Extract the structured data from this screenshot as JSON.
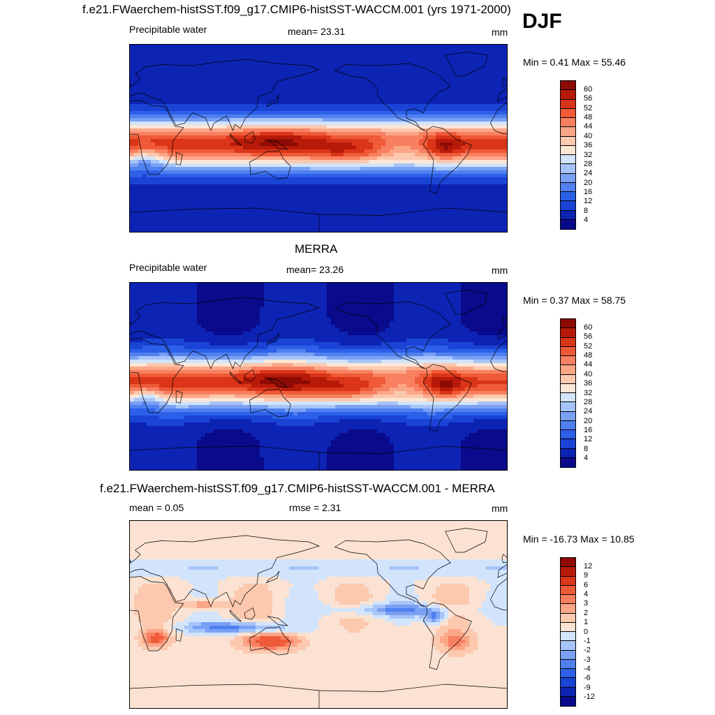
{
  "season": "DJF",
  "panels": [
    {
      "id": "model",
      "title": "f.e21.FWaerchem-histSST.f09_g17.CMIP6-histSST-WACCM.001 (yrs 1971-2000)",
      "left_label": "Precipitable water",
      "center_label": "mean=  23.31",
      "right_label": "mm",
      "minmax": "Min =   0.41 Max =  55.46"
    },
    {
      "id": "obs",
      "title": "MERRA",
      "left_label": "Precipitable water",
      "center_label": "mean=  23.26",
      "right_label": "mm",
      "minmax": "Min =   0.37 Max =  58.75"
    },
    {
      "id": "diff",
      "title": "f.e21.FWaerchem-histSST.f09_g17.CMIP6-histSST-WACCM.001 - MERRA",
      "left_label": "mean =   0.05",
      "center_label": "rmse =   2.31",
      "right_label": "mm",
      "minmax": "Min = -16.73 Max =  10.85"
    }
  ],
  "chart_data": [
    {
      "type": "heatmap",
      "title": "f.e21.FWaerchem-histSST.f09_g17.CMIP6-histSST-WACCM.001 (yrs 1971-2000)",
      "field": "Precipitable water",
      "units": "mm",
      "mean": 23.31,
      "min": 0.41,
      "max": 55.46,
      "colorbar_levels": [
        4,
        8,
        12,
        16,
        20,
        24,
        28,
        32,
        36,
        40,
        44,
        48,
        52,
        56,
        60
      ],
      "colorbar_colors": [
        "#0a0a8c",
        "#0d23b4",
        "#1a44d6",
        "#2d60e8",
        "#5080f0",
        "#7aa0f4",
        "#a6c4f8",
        "#d2e4fc",
        "#fde6d6",
        "#fcc8ae",
        "#fca688",
        "#f88060",
        "#ef5a38",
        "#da3518",
        "#b81a0a",
        "#8e0b05"
      ]
    },
    {
      "type": "heatmap",
      "title": "MERRA",
      "field": "Precipitable water",
      "units": "mm",
      "mean": 23.26,
      "min": 0.37,
      "max": 58.75,
      "colorbar_levels": [
        4,
        8,
        12,
        16,
        20,
        24,
        28,
        32,
        36,
        40,
        44,
        48,
        52,
        56,
        60
      ],
      "colorbar_colors": [
        "#0a0a8c",
        "#0d23b4",
        "#1a44d6",
        "#2d60e8",
        "#5080f0",
        "#7aa0f4",
        "#a6c4f8",
        "#d2e4fc",
        "#fde6d6",
        "#fcc8ae",
        "#fca688",
        "#f88060",
        "#ef5a38",
        "#da3518",
        "#b81a0a",
        "#8e0b05"
      ]
    },
    {
      "type": "heatmap",
      "title": "f.e21.FWaerchem-histSST.f09_g17.CMIP6-histSST-WACCM.001 - MERRA",
      "units": "mm",
      "mean": 0.05,
      "rmse": 2.31,
      "min": -16.73,
      "max": 10.85,
      "colorbar_levels": [
        -12,
        -9,
        -6,
        -4,
        -3,
        -2,
        -1,
        0,
        1,
        2,
        3,
        4,
        6,
        9,
        12
      ],
      "colorbar_colors": [
        "#0a0a8c",
        "#0d23b4",
        "#1a44d6",
        "#2d60e8",
        "#5080f0",
        "#7aa0f4",
        "#a6c4f8",
        "#d2e4fc",
        "#fbe2d2",
        "#fcc8ae",
        "#fca688",
        "#f88060",
        "#ef5a38",
        "#da3518",
        "#b81a0a",
        "#8e0b05"
      ]
    }
  ]
}
